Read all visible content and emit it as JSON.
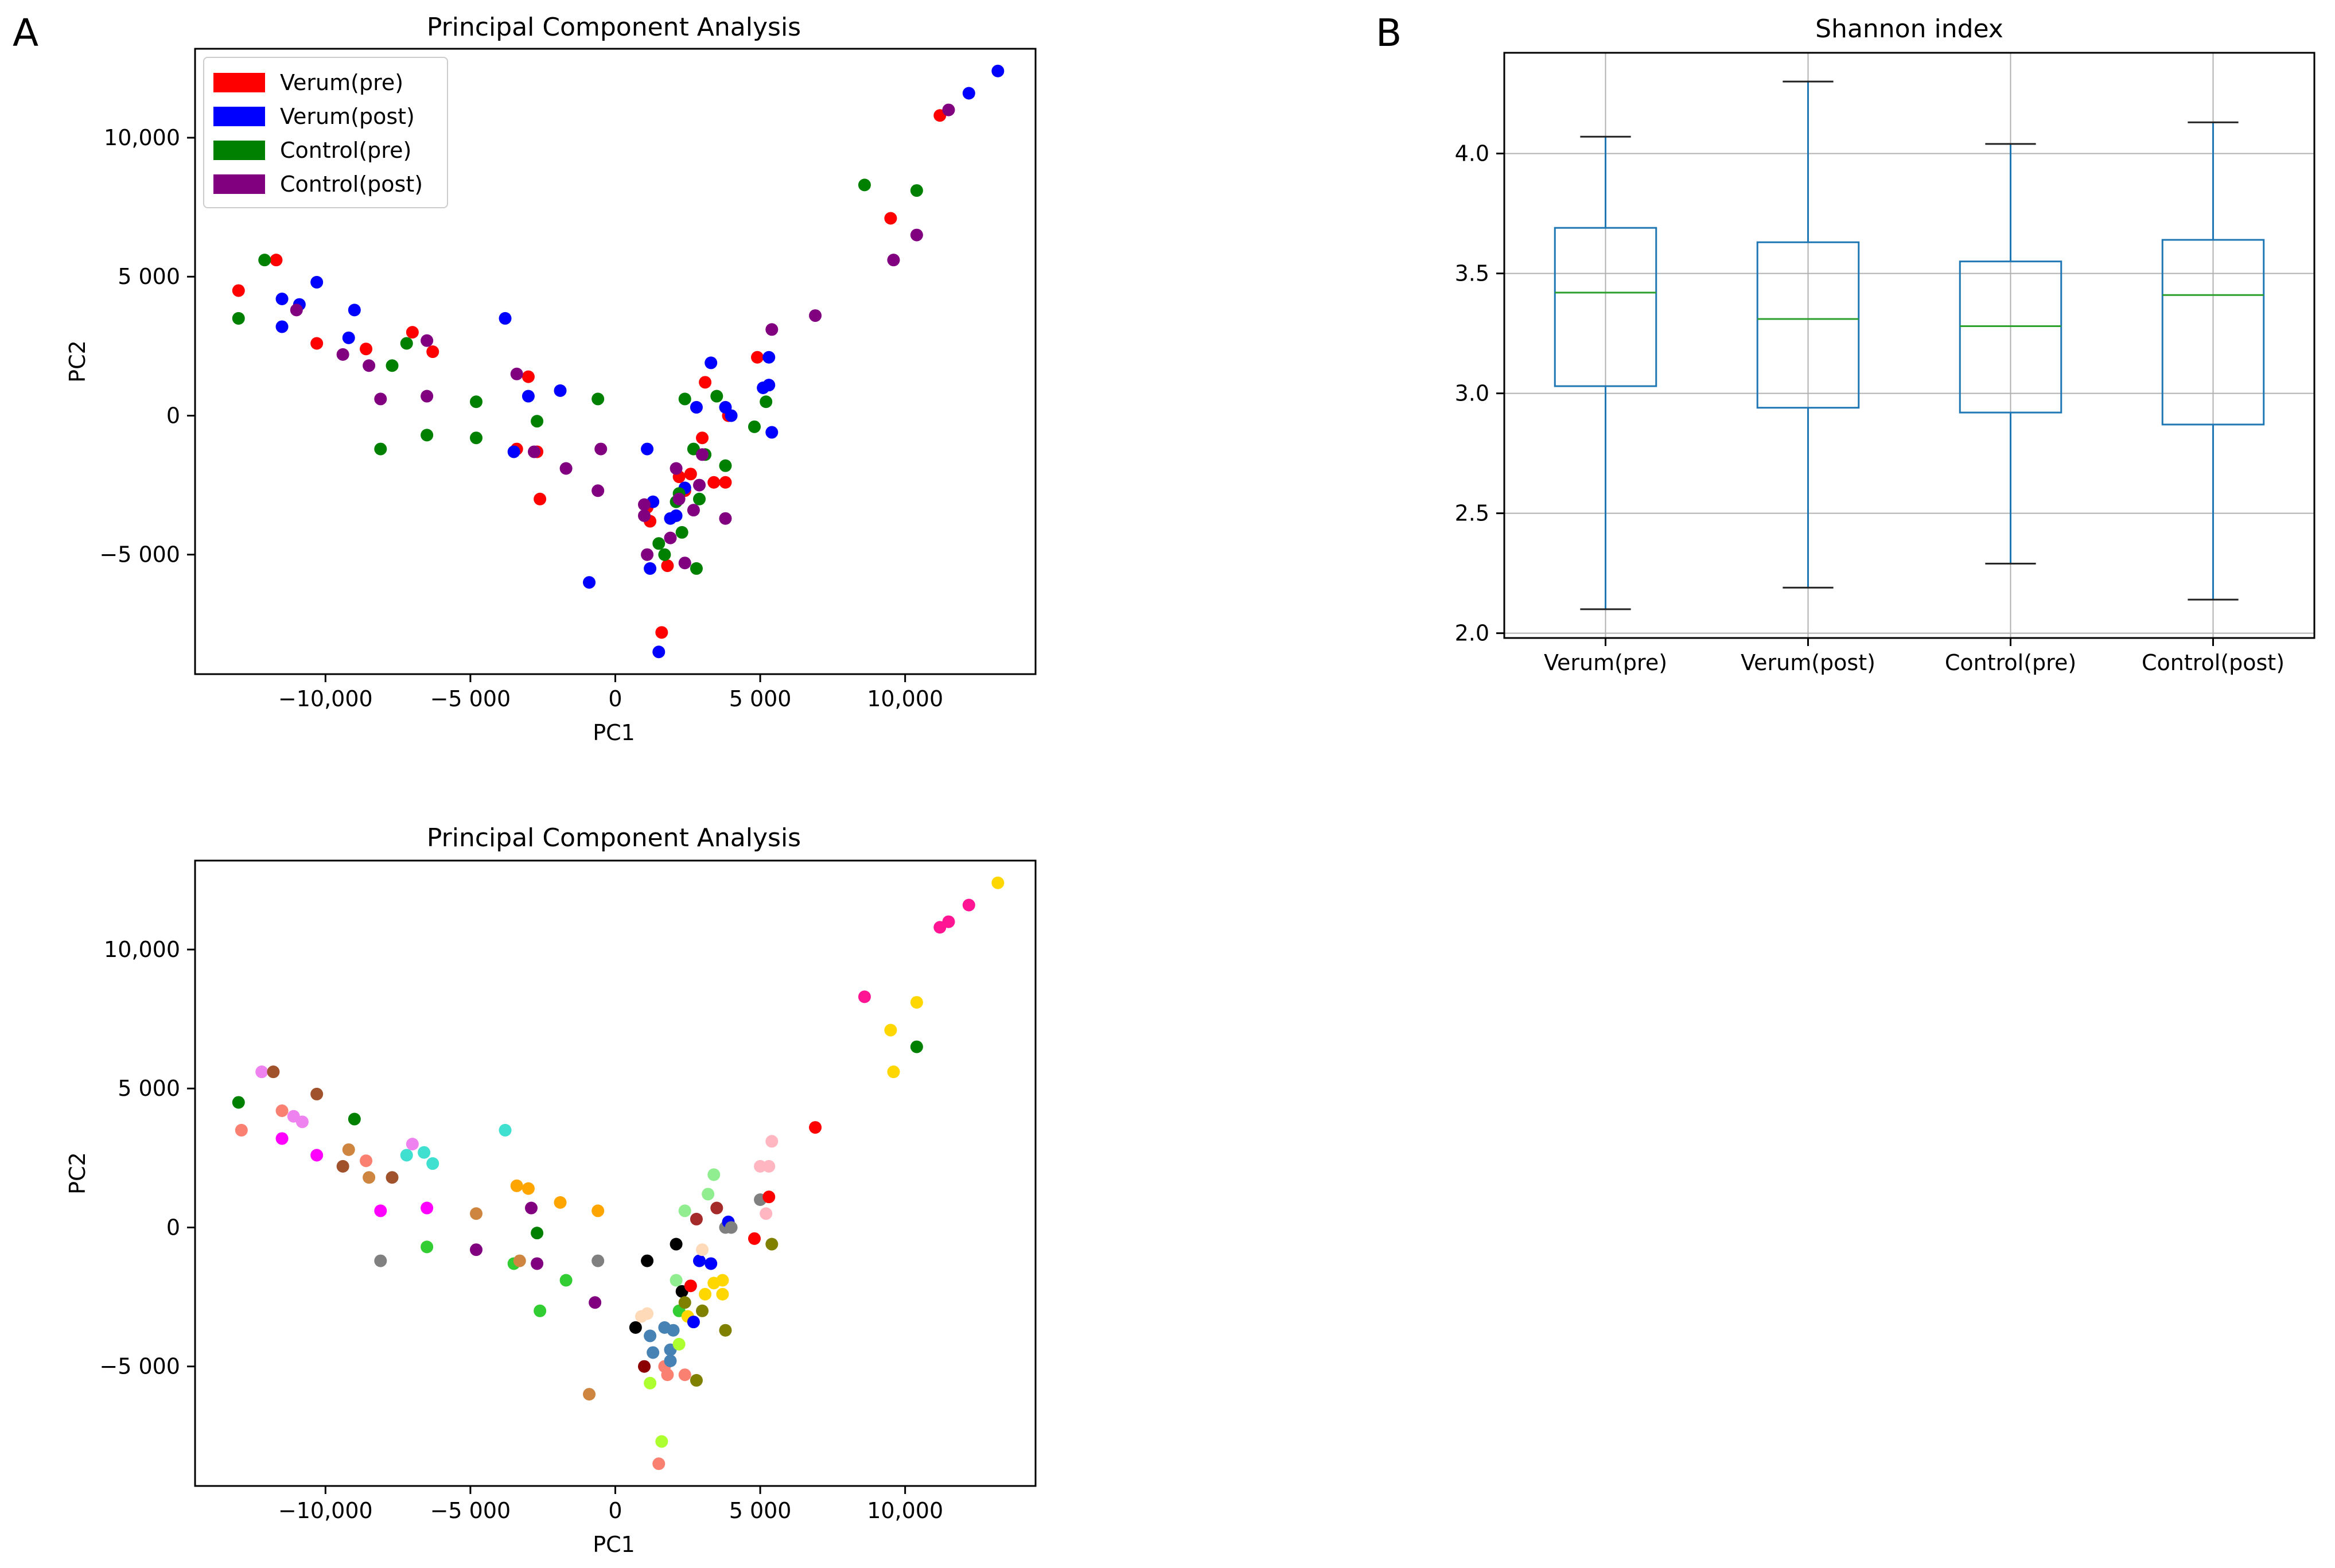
{
  "panel_labels": {
    "a": "A",
    "b": "B"
  },
  "chart_data": [
    {
      "id": "pca_groups",
      "type": "scatter",
      "title": "Principal Component Analysis",
      "xlabel": "PC1",
      "ylabel": "PC2",
      "xlim": [
        -14500,
        14500
      ],
      "ylim": [
        -9300,
        13200
      ],
      "xticks": [
        -10000,
        -5000,
        0,
        5000,
        10000
      ],
      "xtick_labels": [
        "−10,000",
        "−5 000",
        "0",
        "5 000",
        "10,000"
      ],
      "yticks": [
        -5000,
        0,
        5000,
        10000
      ],
      "ytick_labels": [
        "−5 000",
        "0",
        "5 000",
        "10,000"
      ],
      "legend_position": "top-left",
      "series": [
        {
          "name": "Verum(pre)",
          "color": "#ff0000",
          "points": [
            [
              -13000,
              4500
            ],
            [
              -11700,
              5600
            ],
            [
              -10300,
              2600
            ],
            [
              -8600,
              2400
            ],
            [
              -7000,
              3000
            ],
            [
              -6300,
              2300
            ],
            [
              -3400,
              -1200
            ],
            [
              -3000,
              1400
            ],
            [
              -2700,
              -1300
            ],
            [
              -2600,
              -3000
            ],
            [
              1100,
              -3300
            ],
            [
              1200,
              -3800
            ],
            [
              1600,
              -7800
            ],
            [
              1800,
              -5400
            ],
            [
              2200,
              -2200
            ],
            [
              2400,
              -2700
            ],
            [
              2600,
              -2100
            ],
            [
              3000,
              -800
            ],
            [
              3100,
              1200
            ],
            [
              3400,
              -2400
            ],
            [
              3800,
              -2400
            ],
            [
              3900,
              0
            ],
            [
              4900,
              2100
            ],
            [
              9500,
              7100
            ],
            [
              11200,
              10800
            ]
          ]
        },
        {
          "name": "Verum(post)",
          "color": "#0000ff",
          "points": [
            [
              -11500,
              4200
            ],
            [
              -11500,
              3200
            ],
            [
              -10900,
              4000
            ],
            [
              -10300,
              4800
            ],
            [
              -9200,
              2800
            ],
            [
              -9000,
              3800
            ],
            [
              -3800,
              3500
            ],
            [
              -3500,
              -1300
            ],
            [
              -3000,
              700
            ],
            [
              -1900,
              900
            ],
            [
              -900,
              -6000
            ],
            [
              1100,
              -1200
            ],
            [
              1300,
              -3100
            ],
            [
              1200,
              -5500
            ],
            [
              1500,
              -8500
            ],
            [
              1900,
              -3700
            ],
            [
              2100,
              -3600
            ],
            [
              2400,
              -2600
            ],
            [
              2800,
              300
            ],
            [
              3300,
              1900
            ],
            [
              3800,
              300
            ],
            [
              4000,
              0
            ],
            [
              5100,
              1000
            ],
            [
              5300,
              2100
            ],
            [
              5300,
              1100
            ],
            [
              5400,
              -600
            ],
            [
              12200,
              11600
            ],
            [
              13200,
              12400
            ]
          ]
        },
        {
          "name": "Control(pre)",
          "color": "#008000",
          "points": [
            [
              -13000,
              3500
            ],
            [
              -12100,
              5600
            ],
            [
              -8100,
              -1200
            ],
            [
              -7700,
              1800
            ],
            [
              -7200,
              2600
            ],
            [
              -6500,
              -700
            ],
            [
              -4800,
              500
            ],
            [
              -4800,
              -800
            ],
            [
              -2700,
              -200
            ],
            [
              -600,
              600
            ],
            [
              1500,
              -4600
            ],
            [
              1700,
              -5000
            ],
            [
              2200,
              -2800
            ],
            [
              2100,
              -3100
            ],
            [
              2300,
              -4200
            ],
            [
              2400,
              600
            ],
            [
              2700,
              -1200
            ],
            [
              2800,
              -5500
            ],
            [
              2900,
              -3000
            ],
            [
              3100,
              -1400
            ],
            [
              3500,
              700
            ],
            [
              3800,
              -1800
            ],
            [
              4800,
              -400
            ],
            [
              5200,
              500
            ],
            [
              8600,
              8300
            ],
            [
              10400,
              8100
            ]
          ]
        },
        {
          "name": "Control(post)",
          "color": "#800080",
          "points": [
            [
              -11000,
              3800
            ],
            [
              -9400,
              2200
            ],
            [
              -8500,
              1800
            ],
            [
              -8100,
              600
            ],
            [
              -6500,
              2700
            ],
            [
              -6500,
              700
            ],
            [
              -3400,
              1500
            ],
            [
              -2800,
              -1300
            ],
            [
              -1700,
              -1900
            ],
            [
              -600,
              -2700
            ],
            [
              -500,
              -1200
            ],
            [
              1000,
              -3200
            ],
            [
              1000,
              -3600
            ],
            [
              1100,
              -5000
            ],
            [
              1900,
              -4400
            ],
            [
              2100,
              -1900
            ],
            [
              2200,
              -3000
            ],
            [
              2400,
              -5300
            ],
            [
              2700,
              -3400
            ],
            [
              2900,
              -2500
            ],
            [
              3000,
              -1400
            ],
            [
              3800,
              -3700
            ],
            [
              5400,
              3100
            ],
            [
              6900,
              3600
            ],
            [
              9600,
              5600
            ],
            [
              10400,
              6500
            ],
            [
              11500,
              11000
            ]
          ]
        }
      ]
    },
    {
      "id": "pca_subjects",
      "type": "scatter",
      "title": "Principal Component Analysis",
      "xlabel": "PC1",
      "ylabel": "PC2",
      "xlim": [
        -14500,
        14500
      ],
      "ylim": [
        -9300,
        13200
      ],
      "xticks": [
        -10000,
        -5000,
        0,
        5000,
        10000
      ],
      "xtick_labels": [
        "−10,000",
        "−5 000",
        "0",
        "5 000",
        "10,000"
      ],
      "yticks": [
        -5000,
        0,
        5000,
        10000
      ],
      "ytick_labels": [
        "−5 000",
        "0",
        "5 000",
        "10,000"
      ],
      "points": [
        [
          -13000,
          4500,
          "#008000"
        ],
        [
          -12900,
          3500,
          "#fa8072"
        ],
        [
          -12200,
          5600,
          "#ee82ee"
        ],
        [
          -11800,
          5600,
          "#a0522d"
        ],
        [
          -11500,
          4200,
          "#fa8072"
        ],
        [
          -11500,
          3200,
          "#ff00ff"
        ],
        [
          -11100,
          4000,
          "#ee82ee"
        ],
        [
          -10800,
          3800,
          "#ee82ee"
        ],
        [
          -10300,
          4800,
          "#a0522d"
        ],
        [
          -10300,
          2600,
          "#ff00ff"
        ],
        [
          -9400,
          2200,
          "#a0522d"
        ],
        [
          -9200,
          2800,
          "#cd853f"
        ],
        [
          -9000,
          3900,
          "#008000"
        ],
        [
          -8600,
          2400,
          "#fa8072"
        ],
        [
          -8500,
          1800,
          "#cd853f"
        ],
        [
          -8100,
          600,
          "#ff00ff"
        ],
        [
          -8100,
          -1200,
          "#808080"
        ],
        [
          -7700,
          1800,
          "#a0522d"
        ],
        [
          -7200,
          2600,
          "#40e0d0"
        ],
        [
          -7000,
          3000,
          "#ee82ee"
        ],
        [
          -6600,
          2700,
          "#40e0d0"
        ],
        [
          -6500,
          700,
          "#ff00ff"
        ],
        [
          -6500,
          -700,
          "#32cd32"
        ],
        [
          -6300,
          2300,
          "#40e0d0"
        ],
        [
          -4800,
          500,
          "#cd853f"
        ],
        [
          -4800,
          -800,
          "#800080"
        ],
        [
          -3800,
          3500,
          "#40e0d0"
        ],
        [
          -3500,
          -1300,
          "#32cd32"
        ],
        [
          -3400,
          1500,
          "#ffa500"
        ],
        [
          -3300,
          -1200,
          "#cd853f"
        ],
        [
          -3000,
          1400,
          "#ffa500"
        ],
        [
          -2900,
          700,
          "#800080"
        ],
        [
          -2700,
          -200,
          "#008000"
        ],
        [
          -2700,
          -1300,
          "#800080"
        ],
        [
          -2600,
          -3000,
          "#32cd32"
        ],
        [
          -1900,
          900,
          "#ffa500"
        ],
        [
          -1700,
          -1900,
          "#32cd32"
        ],
        [
          -900,
          -6000,
          "#cd853f"
        ],
        [
          -600,
          600,
          "#ffa500"
        ],
        [
          -600,
          -1200,
          "#808080"
        ],
        [
          -700,
          -2700,
          "#800080"
        ],
        [
          700,
          -3600,
          "#000000"
        ],
        [
          900,
          -3200,
          "#ffdab9"
        ],
        [
          1100,
          -3100,
          "#ffdab9"
        ],
        [
          1100,
          -1200,
          "#000000"
        ],
        [
          1000,
          -5000,
          "#8b0000"
        ],
        [
          1200,
          -3900,
          "#4682b4"
        ],
        [
          1300,
          -4500,
          "#4682b4"
        ],
        [
          1200,
          -5600,
          "#adff2f"
        ],
        [
          1500,
          -8500,
          "#fa8072"
        ],
        [
          1600,
          -7700,
          "#adff2f"
        ],
        [
          1700,
          -5000,
          "#fa8072"
        ],
        [
          1800,
          -5300,
          "#fa8072"
        ],
        [
          1700,
          -3600,
          "#4682b4"
        ],
        [
          1900,
          -4800,
          "#4682b4"
        ],
        [
          1900,
          -4400,
          "#4682b4"
        ],
        [
          2000,
          -3700,
          "#4682b4"
        ],
        [
          2100,
          -600,
          "#000000"
        ],
        [
          2200,
          -3000,
          "#32cd32"
        ],
        [
          2100,
          -1900,
          "#90ee90"
        ],
        [
          2300,
          -2300,
          "#000000"
        ],
        [
          2200,
          -4200,
          "#adff2f"
        ],
        [
          2400,
          -2700,
          "#808000"
        ],
        [
          2400,
          600,
          "#90ee90"
        ],
        [
          2400,
          -5300,
          "#fa8072"
        ],
        [
          2500,
          -3200,
          "#ffd700"
        ],
        [
          2600,
          -2100,
          "#ff0000"
        ],
        [
          2700,
          -3400,
          "#0000ff"
        ],
        [
          2800,
          -5500,
          "#808000"
        ],
        [
          2800,
          300,
          "#a52a2a"
        ],
        [
          2900,
          -1200,
          "#0000ff"
        ],
        [
          3000,
          -800,
          "#ffdab9"
        ],
        [
          3000,
          -3000,
          "#808000"
        ],
        [
          3100,
          -2400,
          "#ffd700"
        ],
        [
          3200,
          1200,
          "#90ee90"
        ],
        [
          3300,
          -1300,
          "#0000ff"
        ],
        [
          3400,
          -2000,
          "#ffd700"
        ],
        [
          3400,
          1900,
          "#90ee90"
        ],
        [
          3500,
          700,
          "#a52a2a"
        ],
        [
          3700,
          -2400,
          "#ffd700"
        ],
        [
          3800,
          -3700,
          "#808000"
        ],
        [
          3700,
          -1900,
          "#ffd700"
        ],
        [
          3800,
          0,
          "#808080"
        ],
        [
          3900,
          200,
          "#0000ff"
        ],
        [
          4000,
          0,
          "#808080"
        ],
        [
          4800,
          -400,
          "#ff0000"
        ],
        [
          5000,
          2200,
          "#ffb6c1"
        ],
        [
          5000,
          1000,
          "#808080"
        ],
        [
          5200,
          500,
          "#ffb6c1"
        ],
        [
          5300,
          2200,
          "#ffb6c1"
        ],
        [
          5300,
          1100,
          "#ff0000"
        ],
        [
          5400,
          3100,
          "#ffb6c1"
        ],
        [
          5400,
          -600,
          "#808000"
        ],
        [
          6900,
          3600,
          "#ff0000"
        ],
        [
          8600,
          8300,
          "#ff1493"
        ],
        [
          9500,
          7100,
          "#ffd700"
        ],
        [
          9600,
          5600,
          "#ffd700"
        ],
        [
          10400,
          6500,
          "#008000"
        ],
        [
          10400,
          8100,
          "#ffd700"
        ],
        [
          11200,
          10800,
          "#ff1493"
        ],
        [
          11500,
          11000,
          "#ff1493"
        ],
        [
          12200,
          11600,
          "#ff1493"
        ],
        [
          13200,
          12400,
          "#ffd700"
        ]
      ]
    },
    {
      "id": "shannon",
      "type": "box",
      "title": "Shannon index",
      "xlabel": "",
      "ylabel": "",
      "ylim": [
        1.98,
        4.42
      ],
      "yticks": [
        2.0,
        2.5,
        3.0,
        3.5,
        4.0
      ],
      "ytick_labels": [
        "2.0",
        "2.5",
        "3.0",
        "3.5",
        "4.0"
      ],
      "grid": true,
      "categories": [
        "Verum(pre)",
        "Verum(post)",
        "Control(pre)",
        "Control(post)"
      ],
      "boxes": [
        {
          "whisker_low": 2.1,
          "q1": 3.03,
          "median": 3.42,
          "q3": 3.69,
          "whisker_high": 4.07
        },
        {
          "whisker_low": 2.19,
          "q1": 2.94,
          "median": 3.31,
          "q3": 3.63,
          "whisker_high": 4.3
        },
        {
          "whisker_low": 2.29,
          "q1": 2.92,
          "median": 3.28,
          "q3": 3.55,
          "whisker_high": 4.04
        },
        {
          "whisker_low": 2.14,
          "q1": 2.87,
          "median": 3.41,
          "q3": 3.64,
          "whisker_high": 4.13
        }
      ],
      "box_color": "#1f77b4",
      "median_color": "#2ca02c",
      "cap_color": "#222222"
    }
  ]
}
